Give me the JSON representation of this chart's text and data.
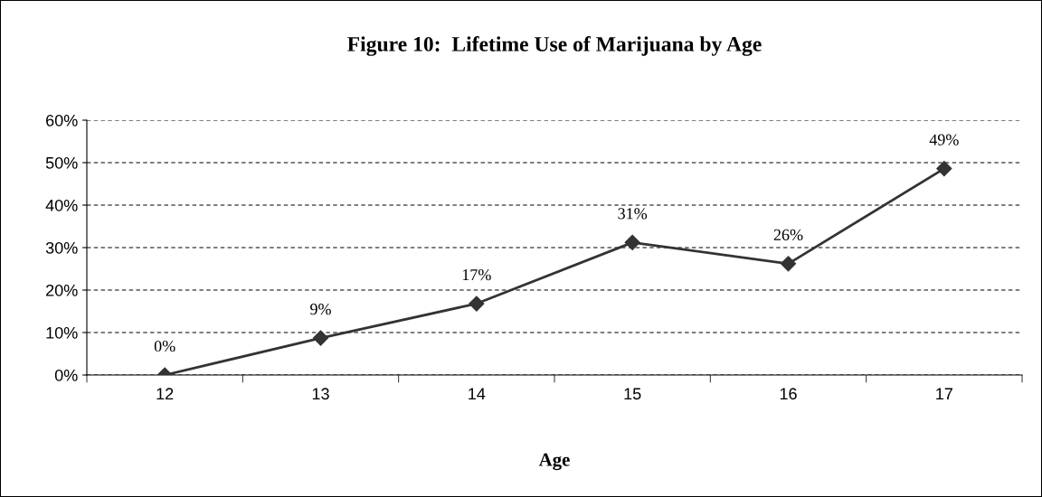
{
  "chart_data": {
    "type": "line",
    "title": "Figure 10:  Lifetime Use of Marijuana by Age",
    "xlabel": "Age",
    "categories": [
      "12",
      "13",
      "14",
      "15",
      "16",
      "17"
    ],
    "series": [
      {
        "color": "#333333",
        "values": [
          0,
          8.7,
          16.8,
          31.2,
          26.2,
          48.6
        ],
        "value_labels": [
          "0%",
          "9%",
          "17%",
          "31%",
          "26%",
          "49%"
        ]
      }
    ],
    "ylim": [
      0,
      60
    ],
    "yticks": [
      {
        "value": 0,
        "label": "0%"
      },
      {
        "value": 10,
        "label": "10%"
      },
      {
        "value": 20,
        "label": "20%"
      },
      {
        "value": 30,
        "label": "30%"
      },
      {
        "value": 40,
        "label": "40%"
      },
      {
        "value": 50,
        "label": "50%"
      },
      {
        "value": 60,
        "label": "60%"
      }
    ],
    "grid": "y",
    "marker": "diamond",
    "line_style": "solid"
  }
}
